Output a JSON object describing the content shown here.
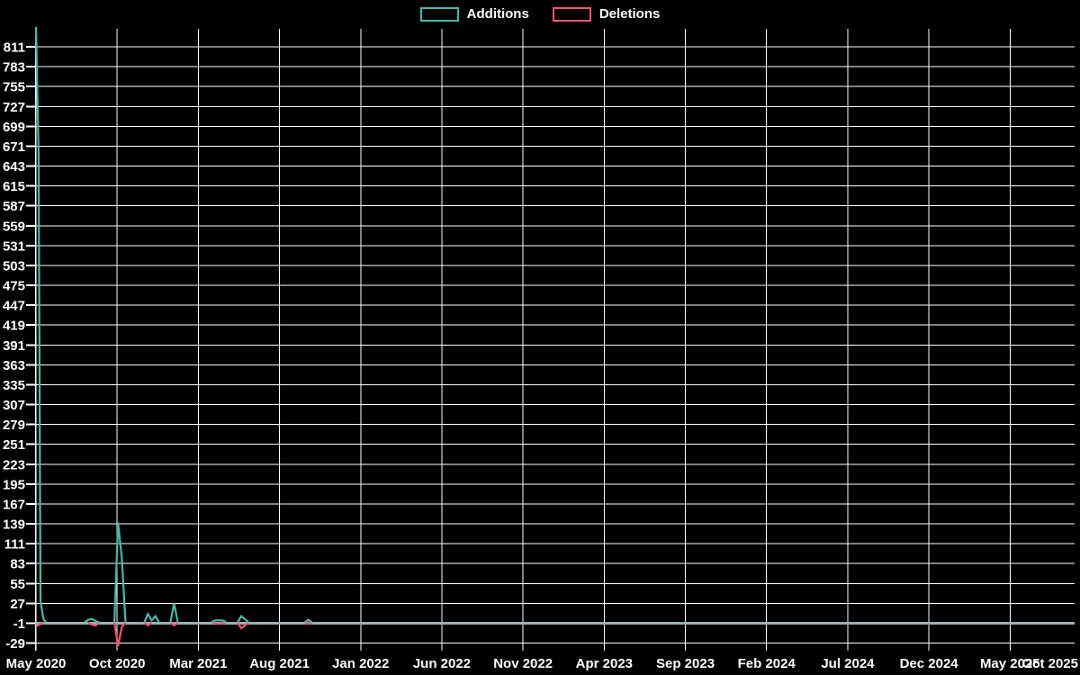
{
  "chart_data": {
    "type": "line",
    "title": "",
    "legend_position": "top-center",
    "background_color": "#000000",
    "grid": true,
    "grid_color": "#ffffff",
    "axis_color": "#ffffff",
    "text_color": "#ffffff",
    "zero_line_color": "#9bb1b3",
    "x_tick_labels": [
      "May 2020",
      "Oct 2020",
      "Mar 2021",
      "Aug 2021",
      "Jan 2022",
      "Jun 2022",
      "Nov 2022",
      "Apr 2023",
      "Sep 2023",
      "Feb 2024",
      "Jul 2024",
      "Dec 2024",
      "May 2025",
      "Oct 2025"
    ],
    "x_months_per_tick": 5,
    "x_unit": "weeks",
    "y_ticks": [
      -29,
      -1,
      27,
      55,
      83,
      111,
      139,
      167,
      195,
      223,
      251,
      279,
      307,
      335,
      363,
      391,
      419,
      447,
      475,
      503,
      531,
      559,
      587,
      615,
      643,
      671,
      699,
      727,
      755,
      783,
      811
    ],
    "y_range": [
      -40,
      839
    ],
    "series": [
      {
        "name": "Additions",
        "color": "#4db6ac",
        "segments": [
          [
            [
              0,
              839
            ],
            [
              0.7,
              660
            ],
            [
              1.2,
              30
            ],
            [
              2,
              5
            ],
            [
              2.7,
              0
            ]
          ],
          [
            [
              13,
              0
            ],
            [
              14,
              4
            ],
            [
              15,
              5
            ],
            [
              16,
              2
            ],
            [
              17,
              0
            ]
          ],
          [
            [
              21,
              0
            ],
            [
              22,
              141
            ],
            [
              23,
              90
            ],
            [
              24,
              0
            ]
          ],
          [
            [
              29,
              0
            ],
            [
              30,
              12
            ],
            [
              31,
              3
            ],
            [
              32,
              9
            ],
            [
              33,
              0
            ]
          ],
          [
            [
              36,
              0
            ],
            [
              37,
              27
            ],
            [
              38,
              0
            ]
          ],
          [
            [
              47,
              0
            ],
            [
              48,
              3
            ],
            [
              50,
              3
            ],
            [
              51,
              0
            ]
          ],
          [
            [
              54,
              0
            ],
            [
              55,
              9
            ],
            [
              57,
              0
            ]
          ],
          [
            [
              72,
              0
            ],
            [
              73,
              4
            ],
            [
              74,
              0
            ]
          ]
        ]
      },
      {
        "name": "Deletions",
        "color": "#f0566e",
        "segments": [
          [
            [
              0,
              -5
            ],
            [
              1,
              -3
            ],
            [
              2,
              0
            ]
          ],
          [
            [
              14,
              0
            ],
            [
              15,
              -3
            ],
            [
              16,
              -4
            ],
            [
              17,
              0
            ]
          ],
          [
            [
              21,
              0
            ],
            [
              22,
              -33
            ],
            [
              23,
              -6
            ],
            [
              24,
              0
            ]
          ],
          [
            [
              29,
              0
            ],
            [
              30,
              -4
            ],
            [
              31,
              0
            ]
          ],
          [
            [
              36,
              0
            ],
            [
              37,
              -4
            ],
            [
              38,
              0
            ]
          ],
          [
            [
              47,
              0
            ],
            [
              49,
              -2
            ],
            [
              51,
              0
            ]
          ],
          [
            [
              54,
              0
            ],
            [
              55,
              -8
            ],
            [
              57,
              0
            ]
          ],
          [
            [
              72,
              0
            ],
            [
              73,
              -2
            ],
            [
              74,
              0
            ]
          ]
        ]
      }
    ]
  }
}
